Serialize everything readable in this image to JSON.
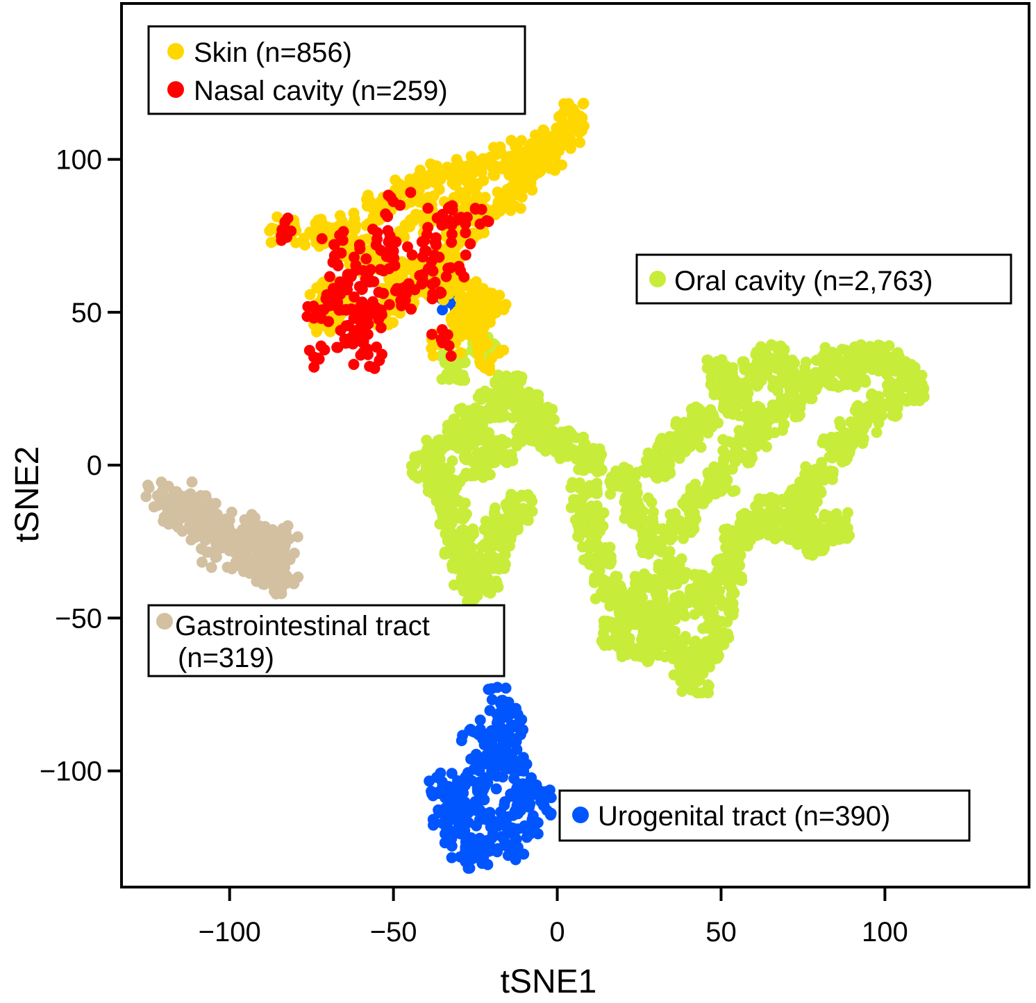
{
  "chart_data": {
    "type": "scatter",
    "xlabel": "tSNE1",
    "ylabel": "tSNE2",
    "xlim": [
      -133,
      144
    ],
    "ylim": [
      -138,
      151
    ],
    "xticks": [
      -100,
      -50,
      0,
      50,
      100
    ],
    "xtick_labels": [
      "−100",
      "−50",
      "0",
      "50",
      "100"
    ],
    "yticks": [
      -100,
      -50,
      0,
      50,
      100
    ],
    "ytick_labels": [
      "−100",
      "−50",
      "0",
      "50",
      "100"
    ],
    "grid": false,
    "series": [
      {
        "name": "Skin (n=856)",
        "color": "#FFD700",
        "count": 856,
        "region": "upper-left, elongated band rising toward the upper right",
        "points": [
          [
            -84,
            77
          ],
          [
            -75,
            76
          ],
          [
            -70,
            75
          ],
          [
            -62,
            80
          ],
          [
            -55,
            84
          ],
          [
            -50,
            88
          ],
          [
            -45,
            90
          ],
          [
            -40,
            92
          ],
          [
            -35,
            95
          ],
          [
            -30,
            96
          ],
          [
            -25,
            97
          ],
          [
            -20,
            98
          ],
          [
            -15,
            100
          ],
          [
            -10,
            102
          ],
          [
            -5,
            104
          ],
          [
            0,
            106
          ],
          [
            3,
            108
          ],
          [
            5,
            111
          ],
          [
            5,
            114
          ],
          [
            -3,
            100
          ],
          [
            -8,
            95
          ],
          [
            -12,
            92
          ],
          [
            -15,
            88
          ],
          [
            -18,
            86
          ],
          [
            -22,
            84
          ],
          [
            -26,
            80
          ],
          [
            -30,
            74
          ],
          [
            -33,
            68
          ],
          [
            -35,
            62
          ],
          [
            -36,
            58
          ],
          [
            -30,
            60
          ],
          [
            -26,
            56
          ],
          [
            -22,
            52
          ],
          [
            -20,
            52
          ],
          [
            -25,
            50
          ],
          [
            -28,
            48
          ],
          [
            -30,
            46
          ],
          [
            -40,
            60
          ],
          [
            -45,
            64
          ],
          [
            -50,
            62
          ],
          [
            -55,
            66
          ],
          [
            -60,
            70
          ],
          [
            -65,
            72
          ],
          [
            -68,
            56
          ],
          [
            -66,
            52
          ],
          [
            -70,
            48
          ],
          [
            -72,
            54
          ],
          [
            -20,
            35
          ],
          [
            -24,
            44
          ],
          [
            -34,
            40
          ],
          [
            -52,
            50
          ],
          [
            -48,
            55
          ],
          [
            -45,
            78
          ],
          [
            -38,
            83
          ],
          [
            -28,
            88
          ],
          [
            -10,
            96
          ]
        ]
      },
      {
        "name": "Nasal cavity (n=259)",
        "color": "#FF0000",
        "count": 259,
        "region": "lower part of the upper-left cluster",
        "points": [
          [
            -84,
            77
          ],
          [
            -72,
            48
          ],
          [
            -70,
            52
          ],
          [
            -68,
            55
          ],
          [
            -66,
            58
          ],
          [
            -64,
            62
          ],
          [
            -62,
            55
          ],
          [
            -60,
            50
          ],
          [
            -60,
            45
          ],
          [
            -58,
            48
          ],
          [
            -56,
            52
          ],
          [
            -62,
            44
          ],
          [
            -64,
            40
          ],
          [
            -60,
            36
          ],
          [
            -58,
            38
          ],
          [
            -73,
            35
          ],
          [
            -68,
            72
          ],
          [
            -62,
            68
          ],
          [
            -56,
            60
          ],
          [
            -54,
            64
          ],
          [
            -50,
            70
          ],
          [
            -45,
            58
          ],
          [
            -42,
            62
          ],
          [
            -38,
            56
          ],
          [
            -35,
            40
          ],
          [
            -47,
            55
          ],
          [
            -55,
            74
          ],
          [
            -48,
            85
          ],
          [
            -40,
            70
          ],
          [
            -35,
            82
          ],
          [
            -33,
            80
          ],
          [
            -28,
            76
          ],
          [
            -25,
            84
          ],
          [
            -37,
            72
          ],
          [
            -30,
            65
          ]
        ]
      },
      {
        "name": "Oral cavity (n=2,763)",
        "color": "#C8EC3A",
        "count": 2763,
        "region": "large central-right cluster",
        "points": [
          [
            -40,
            0
          ],
          [
            -35,
            -5
          ],
          [
            -32,
            -15
          ],
          [
            -30,
            -25
          ],
          [
            -28,
            -35
          ],
          [
            -25,
            -40
          ],
          [
            -22,
            -38
          ],
          [
            -20,
            -30
          ],
          [
            -18,
            -22
          ],
          [
            -15,
            -18
          ],
          [
            -12,
            -14
          ],
          [
            -30,
            10
          ],
          [
            -28,
            15
          ],
          [
            -25,
            12
          ],
          [
            -20,
            20
          ],
          [
            -15,
            25
          ],
          [
            -10,
            20
          ],
          [
            -5,
            15
          ],
          [
            -8,
            10
          ],
          [
            0,
            8
          ],
          [
            5,
            5
          ],
          [
            10,
            2
          ],
          [
            -34,
            -8
          ],
          [
            -36,
            4
          ],
          [
            -24,
            0
          ],
          [
            -18,
            5
          ],
          [
            8,
            -10
          ],
          [
            10,
            -20
          ],
          [
            12,
            -30
          ],
          [
            15,
            -40
          ],
          [
            20,
            -45
          ],
          [
            25,
            -50
          ],
          [
            30,
            -55
          ],
          [
            35,
            -60
          ],
          [
            40,
            -65
          ],
          [
            42,
            -70
          ],
          [
            45,
            -62
          ],
          [
            48,
            -55
          ],
          [
            50,
            -45
          ],
          [
            52,
            -35
          ],
          [
            55,
            -25
          ],
          [
            60,
            -20
          ],
          [
            65,
            -15
          ],
          [
            70,
            -20
          ],
          [
            75,
            -22
          ],
          [
            80,
            -25
          ],
          [
            85,
            -20
          ],
          [
            30,
            0
          ],
          [
            35,
            5
          ],
          [
            40,
            10
          ],
          [
            45,
            15
          ],
          [
            50,
            -5
          ],
          [
            55,
            5
          ],
          [
            60,
            10
          ],
          [
            65,
            15
          ],
          [
            70,
            20
          ],
          [
            75,
            25
          ],
          [
            80,
            30
          ],
          [
            85,
            35
          ],
          [
            90,
            30
          ],
          [
            95,
            35
          ],
          [
            100,
            35
          ],
          [
            105,
            30
          ],
          [
            108,
            25
          ],
          [
            100,
            20
          ],
          [
            95,
            15
          ],
          [
            90,
            10
          ],
          [
            85,
            5
          ],
          [
            80,
            -5
          ],
          [
            75,
            -10
          ],
          [
            50,
            30
          ],
          [
            52,
            25
          ],
          [
            55,
            20
          ],
          [
            60,
            30
          ],
          [
            65,
            35
          ],
          [
            70,
            30
          ],
          [
            20,
            -5
          ],
          [
            25,
            -15
          ],
          [
            30,
            -25
          ],
          [
            35,
            -35
          ],
          [
            40,
            -45
          ],
          [
            45,
            -40
          ],
          [
            38,
            -20
          ],
          [
            42,
            -10
          ],
          [
            28,
            -40
          ],
          [
            18,
            -55
          ],
          [
            24,
            -60
          ],
          [
            32,
            -50
          ],
          [
            -32,
            32
          ],
          [
            -22,
            38
          ]
        ]
      },
      {
        "name": "Gastrointestinal tract (n=319)",
        "color": "#D2C0A0",
        "count": 319,
        "region": "left, diagonal band",
        "points": [
          [
            -122,
            -10
          ],
          [
            -120,
            -12
          ],
          [
            -118,
            -15
          ],
          [
            -115,
            -14
          ],
          [
            -112,
            -18
          ],
          [
            -110,
            -20
          ],
          [
            -108,
            -22
          ],
          [
            -105,
            -24
          ],
          [
            -102,
            -22
          ],
          [
            -100,
            -25
          ],
          [
            -98,
            -26
          ],
          [
            -95,
            -28
          ],
          [
            -92,
            -27
          ],
          [
            -90,
            -30
          ],
          [
            -88,
            -32
          ],
          [
            -86,
            -30
          ],
          [
            -84,
            -34
          ],
          [
            -82,
            -38
          ],
          [
            -83,
            -26
          ],
          [
            -86,
            -24
          ],
          [
            -90,
            -22
          ],
          [
            -95,
            -20
          ],
          [
            -100,
            -18
          ],
          [
            -105,
            -16
          ],
          [
            -110,
            -13
          ],
          [
            -115,
            -10
          ],
          [
            -104,
            -30
          ],
          [
            -98,
            -32
          ],
          [
            -92,
            -35
          ],
          [
            -88,
            -38
          ]
        ]
      },
      {
        "name": "Urogenital tract (n=390)",
        "color": "#0055FF",
        "count": 390,
        "region": "bottom center",
        "points": [
          [
            -17,
            -77
          ],
          [
            -15,
            -80
          ],
          [
            -14,
            -85
          ],
          [
            -16,
            -90
          ],
          [
            -18,
            -95
          ],
          [
            -20,
            -100
          ],
          [
            -22,
            -105
          ],
          [
            -25,
            -110
          ],
          [
            -28,
            -115
          ],
          [
            -30,
            -120
          ],
          [
            -28,
            -125
          ],
          [
            -25,
            -128
          ],
          [
            -22,
            -126
          ],
          [
            -20,
            -122
          ],
          [
            -18,
            -118
          ],
          [
            -15,
            -115
          ],
          [
            -12,
            -110
          ],
          [
            -10,
            -105
          ],
          [
            -8,
            -108
          ],
          [
            -5,
            -110
          ],
          [
            -12,
            -100
          ],
          [
            -14,
            -95
          ],
          [
            -26,
            -87
          ],
          [
            -35,
            -105
          ],
          [
            -32,
            -110
          ],
          [
            -34,
            -115
          ],
          [
            -30,
            -108
          ],
          [
            -28,
            -102
          ],
          [
            -24,
            -96
          ],
          [
            -20,
            -90
          ],
          [
            -10,
            -118
          ],
          [
            -12,
            -125
          ],
          [
            -35,
            55
          ]
        ]
      }
    ],
    "legends": [
      {
        "position": "top-left",
        "entries": [
          "Skin (n=856)",
          "Nasal cavity (n=259)"
        ]
      },
      {
        "position": "middle-right",
        "entries": [
          "Oral cavity (n=2,763)"
        ]
      },
      {
        "position": "left",
        "entries": [
          "Gastrointestinal tract (n=319)"
        ]
      },
      {
        "position": "bottom-right",
        "entries": [
          "Urogenital tract (n=390)"
        ]
      }
    ]
  },
  "legend_text": {
    "skin": "Skin (n=856)",
    "nasal": "Nasal cavity (n=259)",
    "oral": "Oral cavity (n=2,763)",
    "gi_line1": "Gastrointestinal tract",
    "gi_line2": "(n=319)",
    "uro": "Urogenital tract (n=390)"
  },
  "colors": {
    "skin": "#FFD700",
    "nasal": "#FF0000",
    "oral": "#C8EC3A",
    "gi": "#D2C0A0",
    "uro": "#0055FF"
  }
}
